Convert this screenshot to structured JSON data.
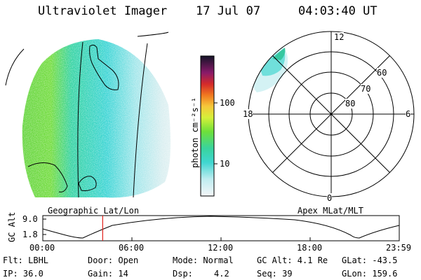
{
  "header": {
    "instrument": "Ultraviolet Imager",
    "date": "17 Jul 07",
    "time": "04:03:40 UT"
  },
  "colorbar": {
    "label": "photon cm⁻²s⁻¹",
    "ticks": [
      "100",
      "10"
    ]
  },
  "geo_panel": {
    "label": "Geographic Lat/Lon"
  },
  "polar_panel": {
    "label": "Apex MLat/MLT",
    "mlt_labels": {
      "top": "12",
      "left": "18",
      "right": "6",
      "bottom": "0"
    },
    "lat_labels": [
      "60",
      "70",
      "80"
    ]
  },
  "timeline": {
    "ylabel": "GC Alt",
    "yticks": [
      "9.0",
      "1.8"
    ],
    "xticks": [
      "00:00",
      "06:00",
      "12:00",
      "18:00",
      "23:59"
    ],
    "current_time_fraction": 0.168
  },
  "status": {
    "row1": {
      "flt": "Flt: LBHL",
      "door": "Door: Open",
      "mode": "Mode: Normal",
      "gcalt": "GC Alt: 4.1 Re",
      "glat": "GLat: -43.5"
    },
    "row2": {
      "ip": "IP: 36.0",
      "gain": "Gain: 14",
      "dsp_label": "Dsp:",
      "dsp_value": "4.2",
      "seq": "Seq: 39",
      "glon": "GLon: 159.6"
    }
  }
}
